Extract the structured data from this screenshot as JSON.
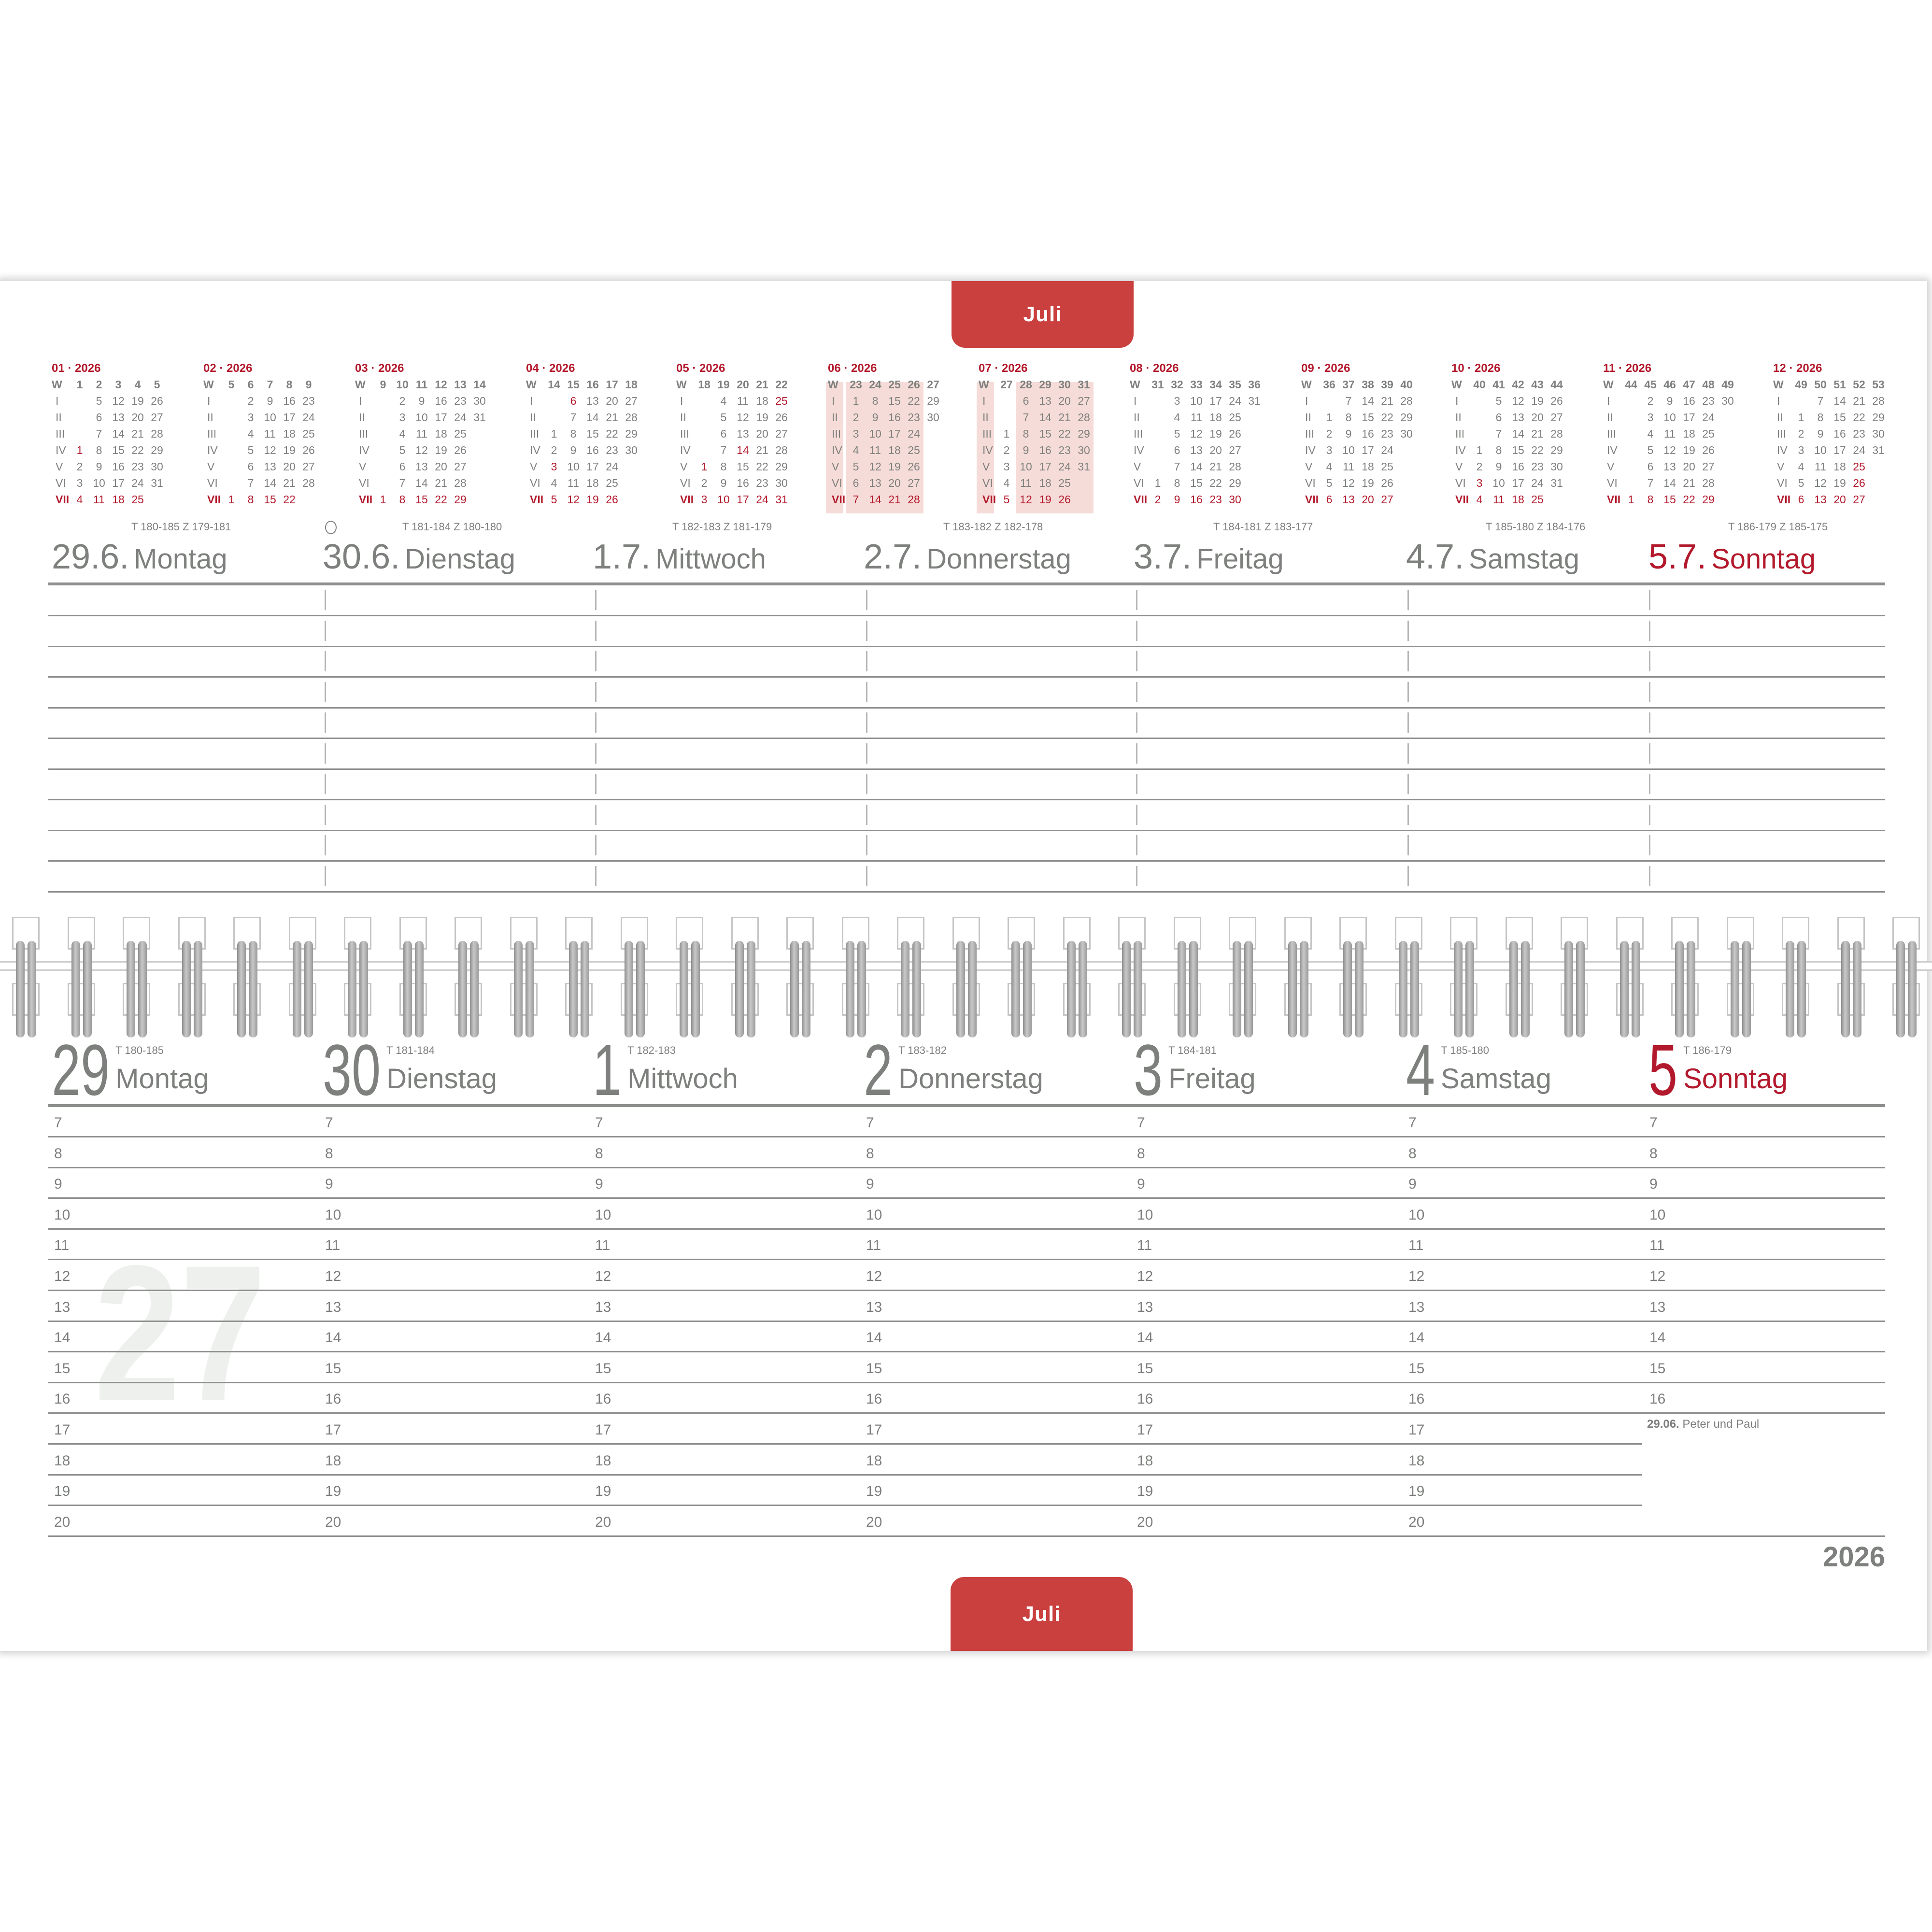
{
  "month_tab": "Juli",
  "year": "2026",
  "week_watermark": "27",
  "colors": {
    "accent": "#c9403e",
    "holiday_red": "#b3192c",
    "text_gray": "#7d807d",
    "highlight": "#f6dcd8"
  },
  "mini_calendars": [
    {
      "title": "01 · 2026",
      "weeks": [
        "1",
        "2",
        "3",
        "4",
        "5"
      ],
      "rows": [
        [
          "",
          "5",
          "12",
          "19",
          "26"
        ],
        [
          "",
          "6",
          "13",
          "20",
          "27"
        ],
        [
          "",
          "7",
          "14",
          "21",
          "28"
        ],
        [
          "1",
          "8",
          "15",
          "22",
          "29"
        ],
        [
          "2",
          "9",
          "16",
          "23",
          "30"
        ],
        [
          "3",
          "10",
          "17",
          "24",
          "31"
        ],
        [
          "4",
          "11",
          "18",
          "25",
          ""
        ]
      ],
      "holidays": [
        "1"
      ],
      "highlighted_weeks": []
    },
    {
      "title": "02 · 2026",
      "weeks": [
        "5",
        "6",
        "7",
        "8",
        "9"
      ],
      "rows": [
        [
          "",
          "2",
          "9",
          "16",
          "23"
        ],
        [
          "",
          "3",
          "10",
          "17",
          "24"
        ],
        [
          "",
          "4",
          "11",
          "18",
          "25"
        ],
        [
          "",
          "5",
          "12",
          "19",
          "26"
        ],
        [
          "",
          "6",
          "13",
          "20",
          "27"
        ],
        [
          "",
          "7",
          "14",
          "21",
          "28"
        ],
        [
          "1",
          "8",
          "15",
          "22",
          ""
        ]
      ],
      "holidays": [],
      "highlighted_weeks": []
    },
    {
      "title": "03 · 2026",
      "weeks": [
        "9",
        "10",
        "11",
        "12",
        "13",
        "14"
      ],
      "rows": [
        [
          "",
          "2",
          "9",
          "16",
          "23",
          "30"
        ],
        [
          "",
          "3",
          "10",
          "17",
          "24",
          "31"
        ],
        [
          "",
          "4",
          "11",
          "18",
          "25",
          ""
        ],
        [
          "",
          "5",
          "12",
          "19",
          "26",
          ""
        ],
        [
          "",
          "6",
          "13",
          "20",
          "27",
          ""
        ],
        [
          "",
          "7",
          "14",
          "21",
          "28",
          ""
        ],
        [
          "1",
          "8",
          "15",
          "22",
          "29",
          ""
        ]
      ],
      "holidays": [],
      "highlighted_weeks": []
    },
    {
      "title": "04 · 2026",
      "weeks": [
        "14",
        "15",
        "16",
        "17",
        "18"
      ],
      "rows": [
        [
          "",
          "6",
          "13",
          "20",
          "27"
        ],
        [
          "",
          "7",
          "14",
          "21",
          "28"
        ],
        [
          "1",
          "8",
          "15",
          "22",
          "29"
        ],
        [
          "2",
          "9",
          "16",
          "23",
          "30"
        ],
        [
          "3",
          "10",
          "17",
          "24",
          ""
        ],
        [
          "4",
          "11",
          "18",
          "25",
          ""
        ],
        [
          "5",
          "12",
          "19",
          "26",
          ""
        ]
      ],
      "holidays": [
        "6",
        "3"
      ],
      "highlighted_weeks": []
    },
    {
      "title": "05 · 2026",
      "weeks": [
        "18",
        "19",
        "20",
        "21",
        "22"
      ],
      "rows": [
        [
          "",
          "4",
          "11",
          "18",
          "25"
        ],
        [
          "",
          "5",
          "12",
          "19",
          "26"
        ],
        [
          "",
          "6",
          "13",
          "20",
          "27"
        ],
        [
          "",
          "7",
          "14",
          "21",
          "28"
        ],
        [
          "1",
          "8",
          "15",
          "22",
          "29"
        ],
        [
          "2",
          "9",
          "16",
          "23",
          "30"
        ],
        [
          "3",
          "10",
          "17",
          "24",
          "31"
        ]
      ],
      "holidays": [
        "25",
        "14",
        "1"
      ],
      "highlighted_weeks": []
    },
    {
      "title": "06 · 2026",
      "weeks": [
        "23",
        "24",
        "25",
        "26",
        "27"
      ],
      "rows": [
        [
          "1",
          "8",
          "15",
          "22",
          "29"
        ],
        [
          "2",
          "9",
          "16",
          "23",
          "30"
        ],
        [
          "3",
          "10",
          "17",
          "24",
          ""
        ],
        [
          "4",
          "11",
          "18",
          "25",
          ""
        ],
        [
          "5",
          "12",
          "19",
          "26",
          ""
        ],
        [
          "6",
          "13",
          "20",
          "27",
          ""
        ],
        [
          "7",
          "14",
          "21",
          "28",
          ""
        ]
      ],
      "holidays": [],
      "highlighted_weeks": [
        "23",
        "24",
        "25",
        "26"
      ]
    },
    {
      "title": "07 · 2026",
      "weeks": [
        "27",
        "28",
        "29",
        "30",
        "31"
      ],
      "rows": [
        [
          "",
          "6",
          "13",
          "20",
          "27"
        ],
        [
          "",
          "7",
          "14",
          "21",
          "28"
        ],
        [
          "1",
          "8",
          "15",
          "22",
          "29"
        ],
        [
          "2",
          "9",
          "16",
          "23",
          "30"
        ],
        [
          "3",
          "10",
          "17",
          "24",
          "31"
        ],
        [
          "4",
          "11",
          "18",
          "25",
          ""
        ],
        [
          "5",
          "12",
          "19",
          "26",
          ""
        ]
      ],
      "holidays": [],
      "highlighted_weeks": [
        "28",
        "29",
        "30",
        "31"
      ]
    },
    {
      "title": "08 · 2026",
      "weeks": [
        "31",
        "32",
        "33",
        "34",
        "35",
        "36"
      ],
      "rows": [
        [
          "",
          "3",
          "10",
          "17",
          "24",
          "31"
        ],
        [
          "",
          "4",
          "11",
          "18",
          "25",
          ""
        ],
        [
          "",
          "5",
          "12",
          "19",
          "26",
          ""
        ],
        [
          "",
          "6",
          "13",
          "20",
          "27",
          ""
        ],
        [
          "",
          "7",
          "14",
          "21",
          "28",
          ""
        ],
        [
          "1",
          "8",
          "15",
          "22",
          "29",
          ""
        ],
        [
          "2",
          "9",
          "16",
          "23",
          "30",
          ""
        ]
      ],
      "holidays": [],
      "highlighted_weeks": []
    },
    {
      "title": "09 · 2026",
      "weeks": [
        "36",
        "37",
        "38",
        "39",
        "40"
      ],
      "rows": [
        [
          "",
          "7",
          "14",
          "21",
          "28"
        ],
        [
          "1",
          "8",
          "15",
          "22",
          "29"
        ],
        [
          "2",
          "9",
          "16",
          "23",
          "30"
        ],
        [
          "3",
          "10",
          "17",
          "24",
          ""
        ],
        [
          "4",
          "11",
          "18",
          "25",
          ""
        ],
        [
          "5",
          "12",
          "19",
          "26",
          ""
        ],
        [
          "6",
          "13",
          "20",
          "27",
          ""
        ]
      ],
      "holidays": [],
      "highlighted_weeks": []
    },
    {
      "title": "10 · 2026",
      "weeks": [
        "40",
        "41",
        "42",
        "43",
        "44"
      ],
      "rows": [
        [
          "",
          "5",
          "12",
          "19",
          "26"
        ],
        [
          "",
          "6",
          "13",
          "20",
          "27"
        ],
        [
          "",
          "7",
          "14",
          "21",
          "28"
        ],
        [
          "1",
          "8",
          "15",
          "22",
          "29"
        ],
        [
          "2",
          "9",
          "16",
          "23",
          "30"
        ],
        [
          "3",
          "10",
          "17",
          "24",
          "31"
        ],
        [
          "4",
          "11",
          "18",
          "25",
          ""
        ]
      ],
      "holidays": [
        "3"
      ],
      "highlighted_weeks": []
    },
    {
      "title": "11 · 2026",
      "weeks": [
        "44",
        "45",
        "46",
        "47",
        "48",
        "49"
      ],
      "rows": [
        [
          "",
          "2",
          "9",
          "16",
          "23",
          "30"
        ],
        [
          "",
          "3",
          "10",
          "17",
          "24",
          ""
        ],
        [
          "",
          "4",
          "11",
          "18",
          "25",
          ""
        ],
        [
          "",
          "5",
          "12",
          "19",
          "26",
          ""
        ],
        [
          "",
          "6",
          "13",
          "20",
          "27",
          ""
        ],
        [
          "",
          "7",
          "14",
          "21",
          "28",
          ""
        ],
        [
          "1",
          "8",
          "15",
          "22",
          "29",
          ""
        ]
      ],
      "holidays": [],
      "highlighted_weeks": []
    },
    {
      "title": "12 · 2026",
      "weeks": [
        "49",
        "50",
        "51",
        "52",
        "53"
      ],
      "rows": [
        [
          "",
          "7",
          "14",
          "21",
          "28"
        ],
        [
          "1",
          "8",
          "15",
          "22",
          "29"
        ],
        [
          "2",
          "9",
          "16",
          "23",
          "30"
        ],
        [
          "3",
          "10",
          "17",
          "24",
          "31"
        ],
        [
          "4",
          "11",
          "18",
          "25",
          ""
        ],
        [
          "5",
          "12",
          "19",
          "26",
          ""
        ],
        [
          "6",
          "13",
          "20",
          "27",
          ""
        ]
      ],
      "holidays": [
        "25",
        "26"
      ],
      "highlighted_weeks": []
    }
  ],
  "weekday_labels": [
    "W",
    "I",
    "II",
    "III",
    "IV",
    "V",
    "VI",
    "VII"
  ],
  "top_days": [
    {
      "date": "29.6.",
      "name": "Montag",
      "info": "T 180-185  Z 179-181",
      "sunday": false,
      "moon": false
    },
    {
      "date": "30.6.",
      "name": "Dienstag",
      "info": "T 181-184  Z 180-180",
      "sunday": false,
      "moon": true,
      "moon_icon": "full-moon-icon"
    },
    {
      "date": "1.7.",
      "name": "Mittwoch",
      "info": "T 182-183  Z 181-179",
      "sunday": false,
      "moon": false
    },
    {
      "date": "2.7.",
      "name": "Donnerstag",
      "info": "T 183-182  Z 182-178",
      "sunday": false,
      "moon": false
    },
    {
      "date": "3.7.",
      "name": "Freitag",
      "info": "T 184-181  Z 183-177",
      "sunday": false,
      "moon": false
    },
    {
      "date": "4.7.",
      "name": "Samstag",
      "info": "T 185-180  Z 184-176",
      "sunday": false,
      "moon": false
    },
    {
      "date": "5.7.",
      "name": "Sonntag",
      "info": "T 186-179  Z 185-175",
      "sunday": true,
      "moon": false
    }
  ],
  "bottom_days": [
    {
      "day": "29",
      "name": "Montag",
      "info": "T 180-185",
      "sunday": false
    },
    {
      "day": "30",
      "name": "Dienstag",
      "info": "T 181-184",
      "sunday": false
    },
    {
      "day": "1",
      "name": "Mittwoch",
      "info": "T 182-183",
      "sunday": false
    },
    {
      "day": "2",
      "name": "Donnerstag",
      "info": "T 183-182",
      "sunday": false
    },
    {
      "day": "3",
      "name": "Freitag",
      "info": "T 184-181",
      "sunday": false
    },
    {
      "day": "4",
      "name": "Samstag",
      "info": "T 185-180",
      "sunday": false
    },
    {
      "day": "5",
      "name": "Sonntag",
      "info": "T 186-179",
      "sunday": true
    }
  ],
  "hours": [
    "7",
    "8",
    "9",
    "10",
    "11",
    "12",
    "13",
    "14",
    "15",
    "16",
    "17",
    "18",
    "19",
    "20"
  ],
  "sunday_hours": [
    "7",
    "8",
    "9",
    "10",
    "11",
    "12",
    "13",
    "14",
    "15",
    "16"
  ],
  "note": {
    "date": "29.06.",
    "text": "Peter und Paul"
  }
}
